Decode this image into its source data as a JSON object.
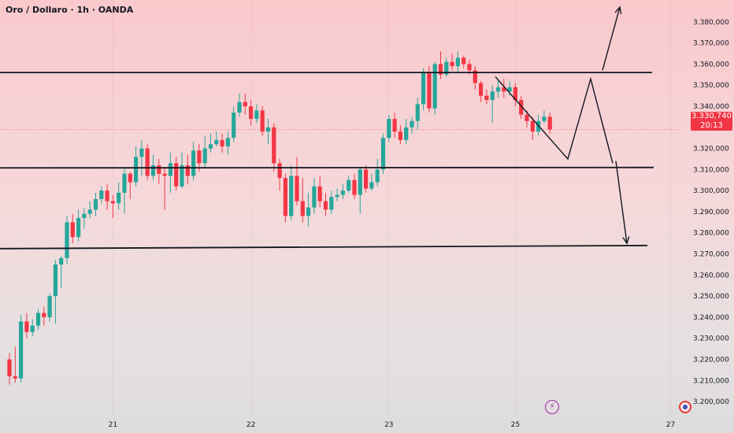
{
  "header": {
    "title": "Oro / Dollaro · 1h · OANDA"
  },
  "price_badge": {
    "price": "3.330,740",
    "countdown": "20:13"
  },
  "icons": {
    "bottom_center": "lightning-icon",
    "bottom_right": "logo-icon"
  },
  "colors": {
    "up": "#26a69a",
    "down": "#f23645",
    "lines": "#131722",
    "badge": "#f23645"
  },
  "chart_data": {
    "type": "candlestick",
    "title": "Oro / Dollaro · 1h · OANDA",
    "ylim": [
      3195,
      3390
    ],
    "y_ticks": [
      "3.380,000",
      "3.370,000",
      "3.360,000",
      "3.350,000",
      "3.340,000",
      "3.330,000",
      "3.320,000",
      "3.310,000",
      "3.300,000",
      "3.290,000",
      "3.280,000",
      "3.270,000",
      "3.260,000",
      "3.250,000",
      "3.240,000",
      "3.230,000",
      "3.220,000",
      "3.210,000",
      "3.200,000"
    ],
    "y_tick_values": [
      3380,
      3370,
      3360,
      3350,
      3340,
      3330,
      3320,
      3310,
      3300,
      3290,
      3280,
      3270,
      3260,
      3250,
      3240,
      3230,
      3220,
      3210,
      3200
    ],
    "x_ticks": [
      {
        "label": "21",
        "index": 18
      },
      {
        "label": "22",
        "index": 42
      },
      {
        "label": "23",
        "index": 66
      },
      {
        "label": "25",
        "index": 88
      },
      {
        "label": "27",
        "index": 115
      }
    ],
    "candles": [
      [
        3220,
        3212,
        3223,
        3208
      ],
      [
        3212,
        3211,
        3226,
        3209
      ],
      [
        3211,
        3238,
        3241,
        3209
      ],
      [
        3238,
        3233,
        3242,
        3230
      ],
      [
        3233,
        3236,
        3239,
        3231
      ],
      [
        3236,
        3242,
        3244,
        3234
      ],
      [
        3242,
        3240,
        3245,
        3236
      ],
      [
        3240,
        3250,
        3251,
        3238
      ],
      [
        3250,
        3265,
        3267,
        3237
      ],
      [
        3265,
        3268,
        3269,
        3254
      ],
      [
        3268,
        3285,
        3288,
        3265
      ],
      [
        3285,
        3278,
        3289,
        3275
      ],
      [
        3278,
        3287,
        3291,
        3276
      ],
      [
        3287,
        3289,
        3292,
        3282
      ],
      [
        3289,
        3291,
        3295,
        3287
      ],
      [
        3291,
        3296,
        3299,
        3288
      ],
      [
        3296,
        3300,
        3302,
        3294
      ],
      [
        3300,
        3295,
        3303,
        3291
      ],
      [
        3295,
        3294,
        3298,
        3287
      ],
      [
        3294,
        3299,
        3304,
        3291
      ],
      [
        3299,
        3308,
        3311,
        3289
      ],
      [
        3308,
        3304,
        3309,
        3296
      ],
      [
        3304,
        3316,
        3321,
        3302
      ],
      [
        3316,
        3320,
        3324,
        3307
      ],
      [
        3320,
        3307,
        3322,
        3305
      ],
      [
        3307,
        3312,
        3317,
        3305
      ],
      [
        3312,
        3308,
        3315,
        3303
      ],
      [
        3308,
        3307,
        3311,
        3291
      ],
      [
        3307,
        3313,
        3318,
        3299
      ],
      [
        3313,
        3302,
        3316,
        3300
      ],
      [
        3302,
        3312,
        3318,
        3301
      ],
      [
        3312,
        3307,
        3317,
        3303
      ],
      [
        3307,
        3319,
        3323,
        3305
      ],
      [
        3319,
        3313,
        3322,
        3309
      ],
      [
        3313,
        3320,
        3326,
        3311
      ],
      [
        3320,
        3322,
        3327,
        3318
      ],
      [
        3322,
        3324,
        3328,
        3321
      ],
      [
        3324,
        3321,
        3327,
        3318
      ],
      [
        3321,
        3325,
        3328,
        3317
      ],
      [
        3325,
        3337,
        3340,
        3323
      ],
      [
        3337,
        3342,
        3346,
        3335
      ],
      [
        3342,
        3340,
        3346,
        3336
      ],
      [
        3340,
        3334,
        3343,
        3331
      ],
      [
        3334,
        3338,
        3341,
        3332
      ],
      [
        3338,
        3328,
        3340,
        3326
      ],
      [
        3328,
        3330,
        3334,
        3322
      ],
      [
        3330,
        3313,
        3332,
        3309
      ],
      [
        3313,
        3306,
        3315,
        3300
      ],
      [
        3306,
        3288,
        3308,
        3285
      ],
      [
        3288,
        3307,
        3312,
        3286
      ],
      [
        3307,
        3295,
        3316,
        3293
      ],
      [
        3295,
        3288,
        3306,
        3285
      ],
      [
        3288,
        3292,
        3299,
        3283
      ],
      [
        3292,
        3302,
        3306,
        3289
      ],
      [
        3302,
        3295,
        3307,
        3292
      ],
      [
        3295,
        3291,
        3299,
        3288
      ],
      [
        3291,
        3297,
        3300,
        3289
      ],
      [
        3297,
        3298,
        3301,
        3295
      ],
      [
        3298,
        3300,
        3303,
        3296
      ],
      [
        3300,
        3305,
        3307,
        3299
      ],
      [
        3305,
        3298,
        3308,
        3296
      ],
      [
        3298,
        3310,
        3311,
        3289
      ],
      [
        3310,
        3301,
        3312,
        3299
      ],
      [
        3301,
        3304,
        3308,
        3300
      ],
      [
        3304,
        3310,
        3315,
        3302
      ],
      [
        3310,
        3325,
        3327,
        3308
      ],
      [
        3325,
        3334,
        3336,
        3323
      ],
      [
        3334,
        3328,
        3337,
        3325
      ],
      [
        3328,
        3324,
        3331,
        3322
      ],
      [
        3324,
        3330,
        3334,
        3322
      ],
      [
        3330,
        3333,
        3335,
        3327
      ],
      [
        3333,
        3341,
        3344,
        3329
      ],
      [
        3341,
        3356,
        3358,
        3338
      ],
      [
        3356,
        3339,
        3359,
        3337
      ],
      [
        3339,
        3360,
        3361,
        3336
      ],
      [
        3360,
        3355,
        3366,
        3353
      ],
      [
        3355,
        3361,
        3363,
        3354
      ],
      [
        3361,
        3359,
        3365,
        3357
      ],
      [
        3359,
        3363,
        3366,
        3356
      ],
      [
        3363,
        3360,
        3364,
        3358
      ],
      [
        3360,
        3357,
        3362,
        3355
      ],
      [
        3357,
        3351,
        3359,
        3348
      ],
      [
        3351,
        3345,
        3352,
        3342
      ],
      [
        3345,
        3343,
        3348,
        3341
      ],
      [
        3343,
        3347,
        3350,
        3332
      ],
      [
        3347,
        3349,
        3352,
        3344
      ],
      [
        3349,
        3347,
        3353,
        3344
      ],
      [
        3347,
        3349,
        3352,
        3345
      ],
      [
        3349,
        3343,
        3351,
        3340
      ],
      [
        3343,
        3336,
        3345,
        3334
      ],
      [
        3336,
        3333,
        3338,
        3330
      ],
      [
        3333,
        3328,
        3335,
        3324
      ],
      [
        3328,
        3333,
        3336,
        3326
      ],
      [
        3333,
        3335,
        3338,
        3332
      ],
      [
        3335,
        3329,
        3337,
        3327
      ]
    ],
    "horizontal_levels": [
      3356,
      3311,
      3274
    ],
    "drawings": "projected zigzag path and arrows"
  }
}
